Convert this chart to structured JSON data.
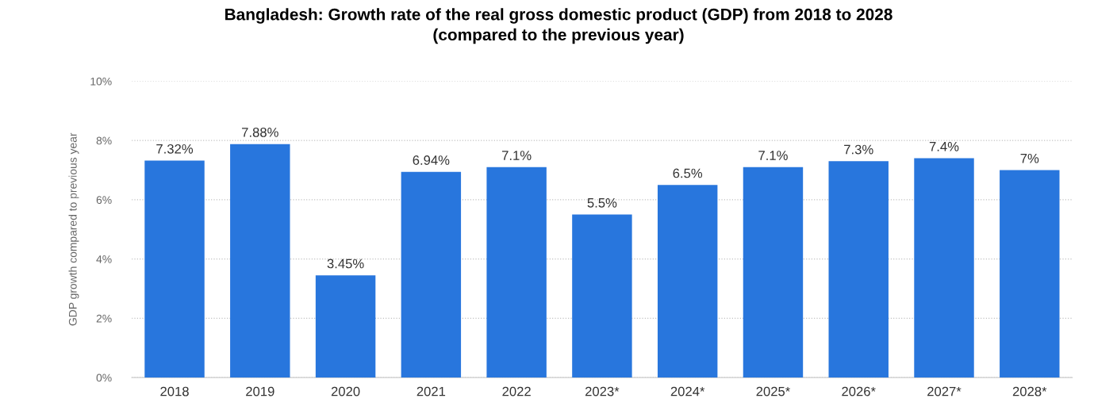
{
  "chart_data": {
    "type": "bar",
    "title": "Bangladesh: Growth rate of the real gross domestic product (GDP) from 2018 to 2028\n(compared to the previous year)",
    "ylabel": "GDP growth compared to previous year",
    "categories": [
      "2018",
      "2019",
      "2020",
      "2021",
      "2022",
      "2023*",
      "2024*",
      "2025*",
      "2026*",
      "2027*",
      "2028*"
    ],
    "values": [
      7.32,
      7.88,
      3.45,
      6.94,
      7.1,
      5.5,
      6.5,
      7.1,
      7.3,
      7.4,
      7
    ],
    "value_labels": [
      "7.32%",
      "7.88%",
      "3.45%",
      "6.94%",
      "7.1%",
      "5.5%",
      "6.5%",
      "7.1%",
      "7.3%",
      "7.4%",
      "7%"
    ],
    "color": "#2876dd",
    "ylim": [
      0,
      10
    ],
    "yticks": [
      {
        "value": 0,
        "label": "0%"
      },
      {
        "value": 2,
        "label": "2%"
      },
      {
        "value": 4,
        "label": "4%"
      },
      {
        "value": 6,
        "label": "6%"
      },
      {
        "value": 8,
        "label": "8%"
      },
      {
        "value": 10,
        "label": "10%"
      }
    ],
    "grid": "y"
  }
}
